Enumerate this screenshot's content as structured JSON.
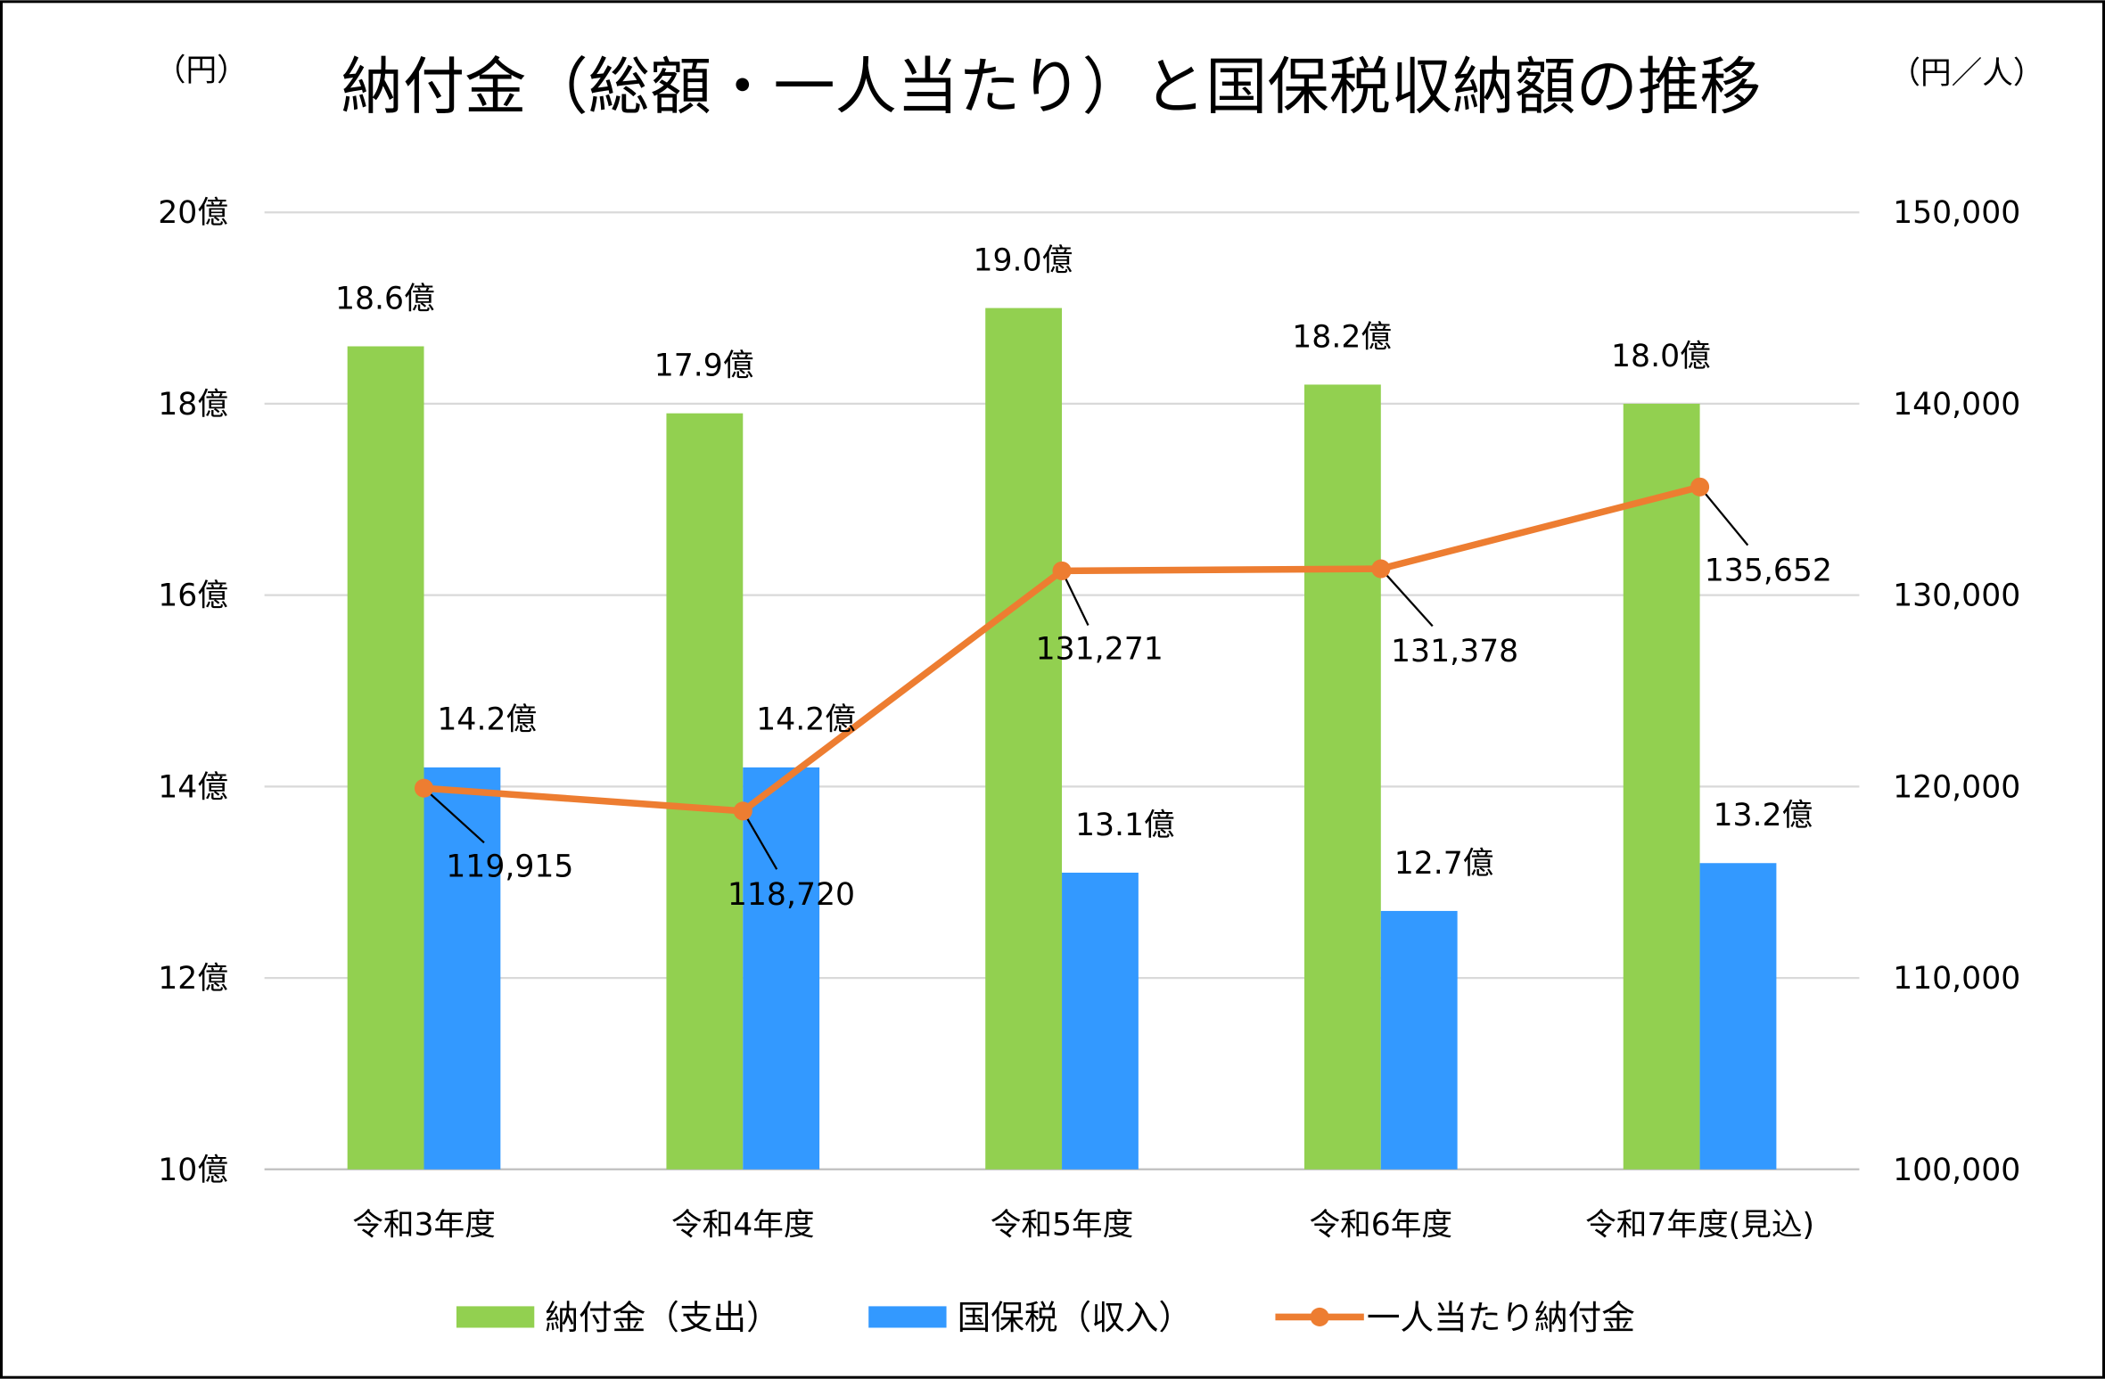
{
  "chart_data": {
    "type": "bar+line",
    "title": "納付金（総額・一人当たり）と国保税収納額の推移",
    "left_unit": "（円）",
    "right_unit": "（円／人）",
    "categories": [
      "令和3年度",
      "令和4年度",
      "令和5年度",
      "令和6年度",
      "令和7年度(見込)"
    ],
    "left_axis": {
      "ylim": [
        10,
        20
      ],
      "ticks": [
        10,
        12,
        14,
        16,
        18,
        20
      ],
      "tick_labels": [
        "10億",
        "12億",
        "14億",
        "16億",
        "18億",
        "20億"
      ]
    },
    "right_axis": {
      "ylim": [
        100000,
        150000
      ],
      "ticks": [
        100000,
        110000,
        120000,
        130000,
        140000,
        150000
      ],
      "tick_labels": [
        "100,000",
        "110,000",
        "120,000",
        "130,000",
        "140,000",
        "150,000"
      ]
    },
    "grid": true,
    "legend_position": "bottom",
    "series": [
      {
        "name": "納付金（支出）",
        "type": "bar",
        "axis": "left",
        "color": "#92d050",
        "values": [
          18.6,
          17.9,
          19.0,
          18.2,
          18.0
        ],
        "labels": [
          "18.6億",
          "17.9億",
          "19.0億",
          "18.2億",
          "18.0億"
        ]
      },
      {
        "name": "国保税（収入）",
        "type": "bar",
        "axis": "left",
        "color": "#3399ff",
        "values": [
          14.2,
          14.2,
          13.1,
          12.7,
          13.2
        ],
        "labels": [
          "14.2億",
          "14.2億",
          "13.1億",
          "12.7億",
          "13.2億"
        ]
      },
      {
        "name": "一人当たり納付金",
        "type": "line",
        "axis": "right",
        "color": "#ed7d31",
        "values": [
          119915,
          118720,
          131271,
          131378,
          135652
        ],
        "labels": [
          "119,915",
          "118,720",
          "131,271",
          "131,378",
          "135,652"
        ]
      }
    ]
  }
}
